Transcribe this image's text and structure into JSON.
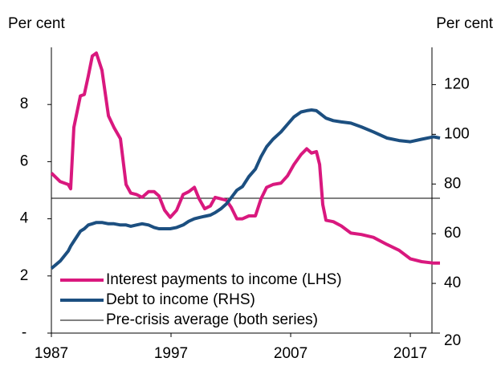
{
  "chart_data": {
    "type": "line",
    "y_axis_label": "Per cent",
    "y2_axis_label": "Per cent",
    "x": [
      1987.0,
      1987.74,
      1988.41,
      1988.61,
      1988.88,
      1989.42,
      1989.75,
      1990.09,
      1990.42,
      1990.76,
      1991.23,
      1991.77,
      1992.23,
      1992.77,
      1993.24,
      1993.64,
      1994.11,
      1994.58,
      1995.12,
      1995.59,
      1995.99,
      1996.46,
      1996.93,
      1997.47,
      1998.01,
      1998.48,
      1998.95,
      1999.35,
      1999.82,
      2000.29,
      2000.69,
      2001.16,
      2001.63,
      2002.03,
      2002.5,
      2002.97,
      2003.51,
      2004.05,
      2004.52,
      2004.99,
      2005.52,
      2006.19,
      2006.73,
      2007.27,
      2007.87,
      2008.34,
      2008.74,
      2009.15,
      2009.42,
      2009.68,
      2009.95,
      2010.56,
      2011.23,
      2012.03,
      2012.91,
      2013.91,
      2015.05,
      2016.06,
      2017.0,
      2017.94,
      2018.95,
      2019.48
    ],
    "series": [
      {
        "name": "Interest payments to income (LHS)",
        "color": "#d9187e",
        "axis": "y",
        "values": [
          5.6,
          5.3,
          5.2,
          5.05,
          7.2,
          8.3,
          8.35,
          9.0,
          9.7,
          9.8,
          9.2,
          7.6,
          7.2,
          6.8,
          5.2,
          4.9,
          4.85,
          4.75,
          4.95,
          4.95,
          4.8,
          4.3,
          4.05,
          4.3,
          4.85,
          4.95,
          5.1,
          4.7,
          4.35,
          4.45,
          4.75,
          4.7,
          4.65,
          4.4,
          4.0,
          4.0,
          4.1,
          4.1,
          4.7,
          5.1,
          5.2,
          5.25,
          5.5,
          5.9,
          6.25,
          6.45,
          6.3,
          6.35,
          5.9,
          4.5,
          3.95,
          3.9,
          3.75,
          3.5,
          3.45,
          3.35,
          3.1,
          2.9,
          2.6,
          2.5,
          2.45,
          2.45
        ]
      },
      {
        "name": "Debt to income (RHS)",
        "color": "#1c4f80",
        "axis": "y2",
        "values": [
          46,
          49,
          53,
          55,
          57,
          61,
          62,
          63.5,
          64,
          64.5,
          64.5,
          64,
          64,
          63.5,
          63.5,
          63,
          63.5,
          64,
          63.5,
          62.5,
          62,
          62,
          62,
          62.5,
          63.5,
          65,
          66,
          66.5,
          67,
          67.5,
          68.5,
          70,
          72,
          74.5,
          77.5,
          79,
          83,
          86,
          91,
          95,
          98,
          101,
          104,
          107,
          109,
          109.5,
          109.8,
          109.5,
          108.5,
          107.5,
          106.5,
          105.5,
          105,
          104.5,
          103,
          101,
          98.5,
          97.5,
          97,
          98,
          99,
          98.5
        ]
      }
    ],
    "reference_lines": [
      {
        "name": "Pre-crisis average (both series)",
        "value": 4.72,
        "color": "#000000"
      }
    ],
    "xlim": [
      1987,
      2019.48
    ],
    "xticks": [
      1987,
      1997,
      2007,
      2017
    ],
    "ylim": [
      0,
      10
    ],
    "yticks": [
      {
        "value": 0,
        "label": "-"
      },
      2,
      4,
      6,
      8
    ],
    "y2lim": [
      20,
      135
    ],
    "y2ticks": [
      20,
      40,
      60,
      80,
      100,
      120
    ],
    "legend": "bottom-left"
  }
}
